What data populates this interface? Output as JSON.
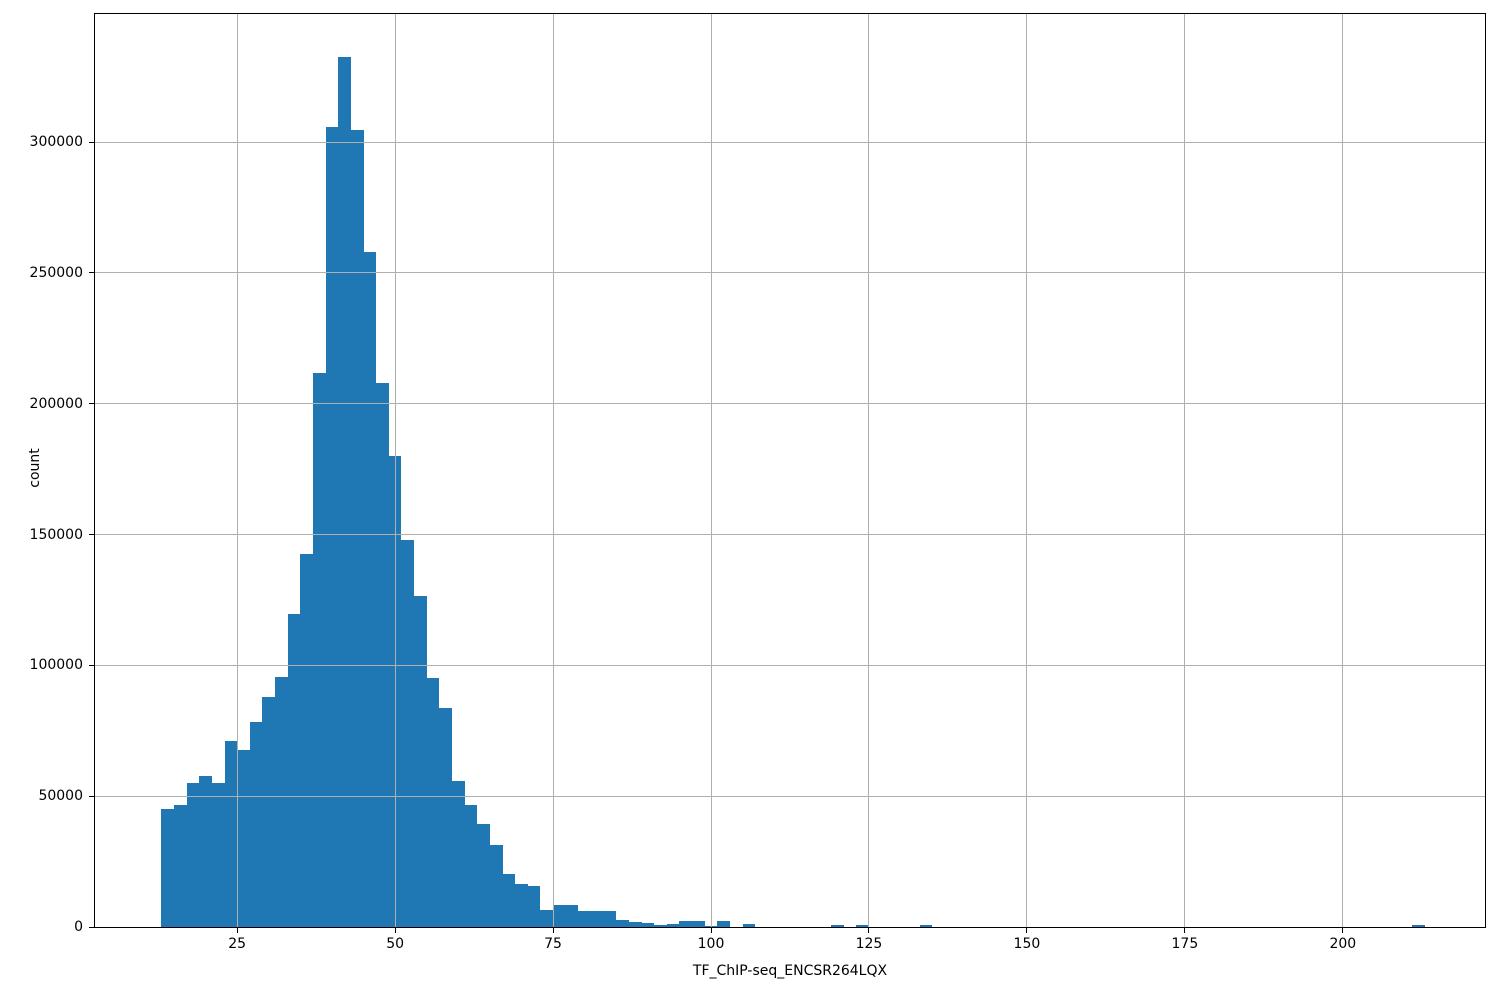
{
  "figure": {
    "background": "#ffffff",
    "title": ""
  },
  "chart_data": {
    "type": "bar",
    "subtype": "histogram",
    "title": "",
    "xlabel": "TF_ChIP-seq_ENCSR264LQX",
    "ylabel": "count",
    "bar_color": "#1f77b4",
    "grid": true,
    "grid_color": "#b0b0b0",
    "grid_above_bars": true,
    "spine_color": "#000000",
    "legend": "none",
    "xlim": [
      2.5,
      222.5
    ],
    "ylim": [
      0,
      349000
    ],
    "xticks": [
      25,
      50,
      75,
      100,
      125,
      150,
      175,
      200
    ],
    "yticks": [
      0,
      50000,
      100000,
      150000,
      200000,
      250000,
      300000
    ],
    "bins_start": 13,
    "bin_width": 2,
    "bins_end": 213,
    "counts": [
      45200,
      46700,
      54900,
      57700,
      55000,
      71100,
      67700,
      78300,
      87800,
      95700,
      119500,
      142500,
      211600,
      306000,
      332400,
      304600,
      257900,
      207900,
      180200,
      147800,
      126700,
      95000,
      83800,
      55700,
      46700,
      39500,
      31400,
      20300,
      16400,
      15600,
      6400,
      8500,
      8500,
      6300,
      6200,
      6100,
      2800,
      1900,
      1500,
      600,
      1250,
      2200,
      2200,
      550,
      2450,
      0,
      1000,
      0,
      0,
      0,
      0,
      0,
      0,
      800,
      0,
      800,
      0,
      0,
      0,
      0,
      800,
      0,
      0,
      0,
      0,
      0,
      0,
      0,
      0,
      0,
      0,
      0,
      0,
      0,
      0,
      0,
      0,
      0,
      0,
      0,
      0,
      0,
      0,
      0,
      0,
      0,
      0,
      0,
      0,
      0,
      0,
      0,
      0,
      0,
      0,
      0,
      0,
      0,
      0,
      700
    ],
    "peak": {
      "bin_left_edge": 41,
      "count": 332400
    }
  }
}
